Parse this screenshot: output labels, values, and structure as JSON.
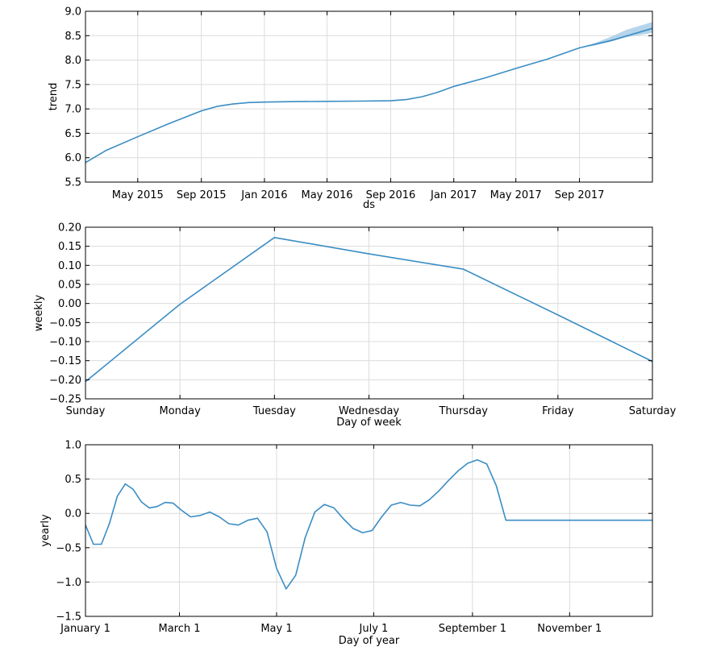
{
  "chart_data": [
    {
      "type": "line",
      "xlabel": "ds",
      "ylabel": "trend",
      "ylim": [
        5.5,
        9.0
      ],
      "y_ticks": [
        "5.5",
        "6.0",
        "6.5",
        "7.0",
        "7.5",
        "8.0",
        "8.5",
        "9.0"
      ],
      "x_ticks": [
        "May 2015",
        "Sep 2015",
        "Jan 2016",
        "May 2016",
        "Sep 2016",
        "Jan 2017",
        "May 2017",
        "Sep 2017"
      ],
      "grid": true,
      "line_color": "#3a8dc4",
      "band_color": "#a9cde8",
      "x": [
        "2015-01-20",
        "2015-03-01",
        "2015-05-01",
        "2015-07-01",
        "2015-09-01",
        "2015-10-01",
        "2015-11-01",
        "2015-12-01",
        "2016-01-01",
        "2016-03-01",
        "2016-05-01",
        "2016-07-01",
        "2016-09-01",
        "2016-10-01",
        "2016-11-01",
        "2016-12-01",
        "2017-01-01",
        "2017-03-01",
        "2017-05-01",
        "2017-07-01",
        "2017-09-01",
        "2017-11-01",
        "2018-01-20"
      ],
      "y": [
        5.9,
        6.15,
        6.43,
        6.7,
        6.96,
        7.05,
        7.1,
        7.13,
        7.14,
        7.15,
        7.155,
        7.16,
        7.165,
        7.19,
        7.25,
        7.34,
        7.46,
        7.63,
        7.83,
        8.02,
        8.25,
        8.4,
        8.65
      ],
      "band_x": [
        "2017-09-01",
        "2017-10-01",
        "2017-11-01",
        "2017-12-01",
        "2018-01-20"
      ],
      "band_upper": [
        8.25,
        8.35,
        8.48,
        8.62,
        8.78
      ],
      "band_lower": [
        8.25,
        8.3,
        8.38,
        8.47,
        8.56
      ]
    },
    {
      "type": "line",
      "xlabel": "Day of week",
      "ylabel": "weekly",
      "ylim": [
        -0.25,
        0.2
      ],
      "y_ticks": [
        "−0.25",
        "−0.20",
        "−0.15",
        "−0.10",
        "−0.05",
        "0.00",
        "0.05",
        "0.10",
        "0.15",
        "0.20"
      ],
      "categories": [
        "Sunday",
        "Monday",
        "Tuesday",
        "Wednesday",
        "Thursday",
        "Friday",
        "Saturday"
      ],
      "values": [
        -0.205,
        -0.002,
        0.173,
        0.13,
        0.09,
        -0.03,
        -0.152
      ],
      "grid": true,
      "line_color": "#3a8dc4"
    },
    {
      "type": "line",
      "xlabel": "Day of year",
      "ylabel": "yearly",
      "ylim": [
        -1.5,
        1.0
      ],
      "y_ticks": [
        "−1.5",
        "−1.0",
        "−0.5",
        "0.0",
        "0.5",
        "1.0"
      ],
      "x_ticks": [
        "January 1",
        "March 1",
        "May 1",
        "July 1",
        "September 1",
        "November 1"
      ],
      "x_tick_days": [
        0,
        59,
        120,
        181,
        243,
        304
      ],
      "x_range_days": [
        0,
        356
      ],
      "grid": true,
      "line_color": "#3a8dc4",
      "x": [
        0,
        5,
        10,
        15,
        20,
        25,
        30,
        35,
        40,
        45,
        50,
        55,
        60,
        66,
        72,
        78,
        84,
        90,
        96,
        102,
        108,
        114,
        120,
        126,
        132,
        138,
        144,
        150,
        156,
        162,
        168,
        174,
        180,
        186,
        192,
        198,
        204,
        210,
        216,
        222,
        228,
        234,
        240,
        246,
        252,
        258,
        264,
        270,
        276,
        282,
        288,
        294,
        300,
        306,
        312,
        318,
        324,
        330,
        336,
        342,
        348,
        356
      ],
      "y": [
        -0.17,
        -0.45,
        -0.45,
        -0.15,
        0.25,
        0.43,
        0.35,
        0.17,
        0.08,
        0.1,
        0.16,
        0.15,
        0.05,
        -0.05,
        -0.03,
        0.02,
        -0.05,
        -0.15,
        -0.17,
        -0.1,
        -0.07,
        -0.27,
        -0.8,
        -1.1,
        -0.9,
        -0.35,
        0.02,
        0.13,
        0.08,
        -0.08,
        -0.22,
        -0.28,
        -0.25,
        -0.05,
        0.12,
        0.16,
        0.12,
        0.11,
        0.2,
        0.33,
        0.48,
        0.62,
        0.73,
        0.78,
        0.72,
        0.4,
        -0.1,
        -0.1,
        -0.1,
        -0.1,
        -0.1,
        -0.1,
        -0.1,
        -0.1,
        -0.1,
        -0.1,
        -0.1,
        -0.1,
        -0.1,
        -0.1,
        -0.1,
        -0.1
      ]
    }
  ]
}
